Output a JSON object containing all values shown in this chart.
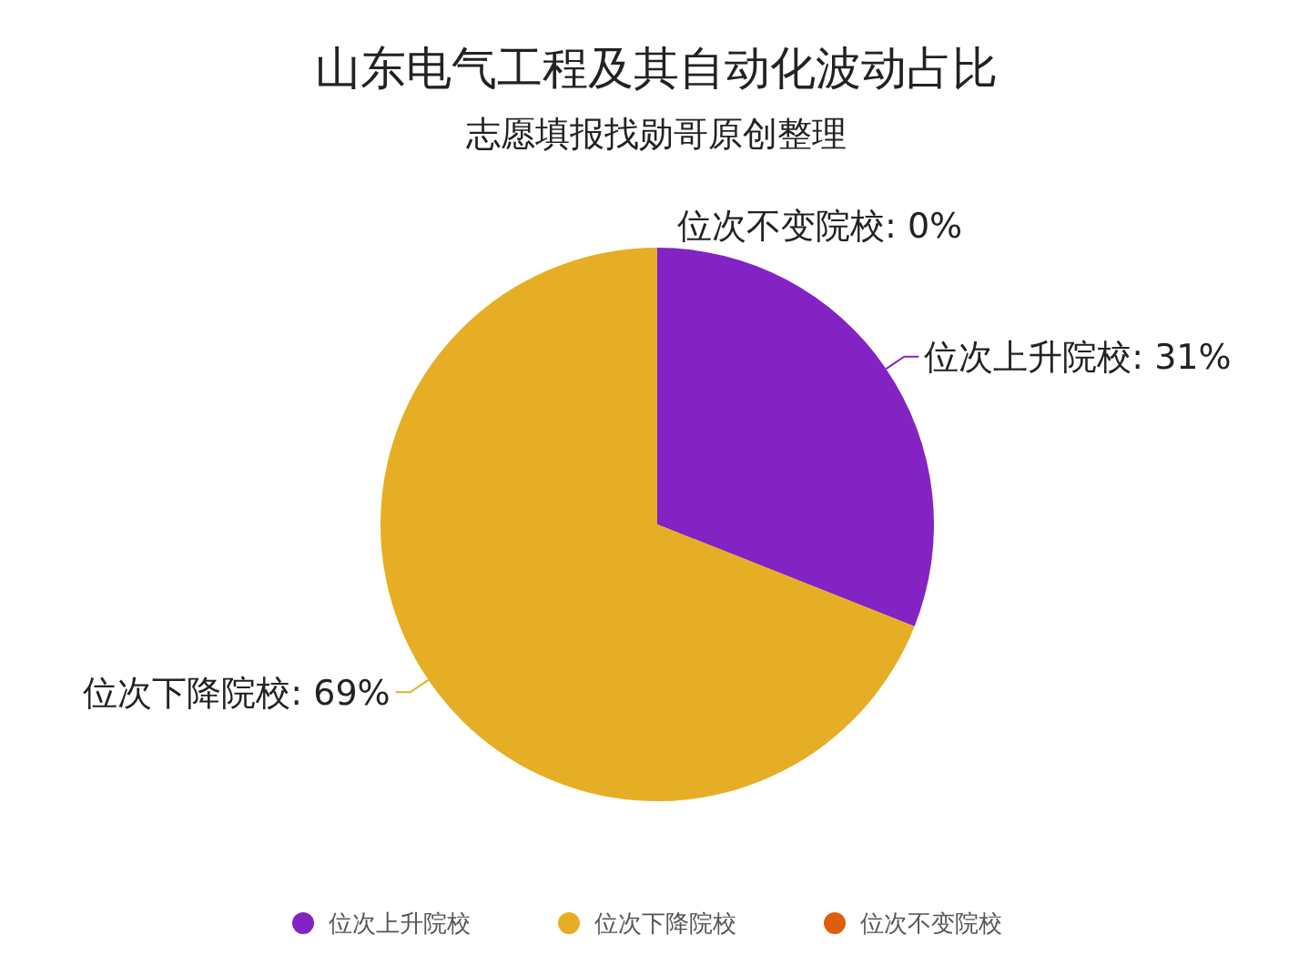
{
  "chart_data": {
    "type": "pie",
    "title": "山东电气工程及其自动化波动占比",
    "subtitle": "志愿填报找勋哥原创整理",
    "categories": [
      "位次上升院校",
      "位次下降院校",
      "位次不变院校"
    ],
    "values": [
      31,
      69,
      0
    ],
    "colors": [
      "#8423c3",
      "#e6ae24",
      "#e05d0c"
    ],
    "value_labels": [
      "位次上升院校: 31%",
      "位次下降院校: 69%",
      "位次不变院校: 0%"
    ],
    "legend": "bottom"
  }
}
